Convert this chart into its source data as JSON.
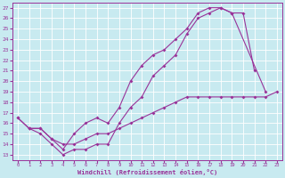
{
  "title": "",
  "xlabel": "Windchill (Refroidissement éolien,°C)",
  "ylabel": "",
  "xlim": [
    -0.5,
    23.5
  ],
  "ylim": [
    12.5,
    27.5
  ],
  "xticks": [
    0,
    1,
    2,
    3,
    4,
    5,
    6,
    7,
    8,
    9,
    10,
    11,
    12,
    13,
    14,
    15,
    16,
    17,
    18,
    19,
    20,
    21,
    22,
    23
  ],
  "yticks": [
    13,
    14,
    15,
    16,
    17,
    18,
    19,
    20,
    21,
    22,
    23,
    24,
    25,
    26,
    27
  ],
  "bg_color": "#c8eaf0",
  "line_color": "#993399",
  "grid_color": "#aad4dc",
  "line1_x": [
    0,
    1,
    2,
    3,
    4,
    5,
    6,
    7,
    8,
    9,
    10,
    11,
    12,
    13,
    14,
    15,
    16,
    17,
    18,
    19,
    20,
    21
  ],
  "line1_y": [
    16.5,
    15.5,
    15.0,
    14.0,
    13.0,
    13.5,
    13.5,
    14.0,
    14.0,
    16.0,
    17.5,
    18.5,
    20.5,
    21.5,
    22.5,
    24.5,
    26.0,
    26.5,
    27.0,
    26.5,
    26.5,
    21.0
  ],
  "line2_x": [
    0,
    1,
    2,
    3,
    4,
    5,
    6,
    7,
    8,
    9,
    10,
    11,
    12,
    13,
    14,
    15,
    16,
    17,
    18,
    19,
    22
  ],
  "line2_y": [
    16.5,
    15.5,
    15.5,
    14.5,
    13.5,
    15.0,
    16.0,
    16.5,
    16.0,
    17.5,
    20.0,
    21.5,
    22.5,
    23.0,
    24.0,
    25.0,
    26.5,
    27.0,
    27.0,
    26.5,
    19.0
  ],
  "line3_x": [
    1,
    2,
    3,
    4,
    5,
    6,
    7,
    8,
    9,
    10,
    11,
    12,
    13,
    14,
    15,
    16,
    17,
    18,
    19,
    20,
    21,
    22,
    23
  ],
  "line3_y": [
    15.5,
    15.5,
    14.5,
    14.0,
    14.0,
    14.5,
    15.0,
    15.0,
    15.5,
    16.0,
    16.5,
    17.0,
    17.5,
    18.0,
    18.5,
    18.5,
    18.5,
    18.5,
    18.5,
    18.5,
    18.5,
    18.5,
    19.0
  ]
}
